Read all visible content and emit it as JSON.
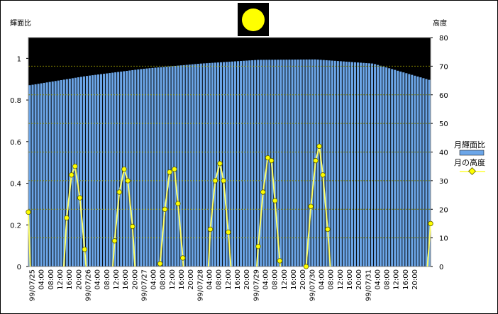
{
  "chart_data": {
    "type": "bar",
    "title": "",
    "left_axis": {
      "label": "輝面比",
      "range": [
        0,
        1.1
      ],
      "ticks": [
        "0",
        "0.2",
        "0.4",
        "0.6",
        "0.8",
        "1"
      ]
    },
    "right_axis": {
      "label": "高度",
      "range": [
        0,
        80
      ],
      "ticks": [
        "0",
        "10",
        "20",
        "30",
        "40",
        "50",
        "60",
        "70",
        "80"
      ]
    },
    "x_labels": [
      "99/07/25",
      "04:00",
      "08:00",
      "12:00",
      "16:00",
      "20:00",
      "99/07/26",
      "04:00",
      "08:00",
      "12:00",
      "16:00",
      "20:00",
      "99/07/27",
      "04:00",
      "08:00",
      "12:00",
      "16:00",
      "20:00",
      "99/07/28",
      "04:00",
      "08:00",
      "12:00",
      "16:00",
      "20:00",
      "99/07/29",
      "04:00",
      "08:00",
      "12:00",
      "16:00",
      "20:00",
      "99/07/30",
      "04:00",
      "08:00",
      "12:00",
      "16:00",
      "20:00",
      "99/07/31",
      "04:00",
      "08:00",
      "12:00",
      "16:00",
      "20:00"
    ],
    "x_range_hours": [
      0,
      168
    ],
    "legend": {
      "placement": "right",
      "series_bar": "月輝面比",
      "series_line": "月の高度"
    },
    "colors": {
      "bar": "#6CA6E8",
      "bar_background": "#000000",
      "line": "#FFFF66",
      "marker": "#FFFF00",
      "grid": "#808000",
      "moon": "#FFFF00"
    },
    "illumination": [
      [
        0,
        0.87
      ],
      [
        24,
        0.915
      ],
      [
        48,
        0.95
      ],
      [
        72,
        0.975
      ],
      [
        96,
        0.993
      ],
      [
        120,
        0.995
      ],
      [
        144,
        0.975
      ],
      [
        168,
        0.895
      ]
    ],
    "altitude_points": [
      [
        0,
        19
      ],
      [
        16,
        17
      ],
      [
        18,
        32
      ],
      [
        19.5,
        35
      ],
      [
        21.5,
        24
      ],
      [
        23.5,
        6
      ],
      [
        36,
        9
      ],
      [
        38,
        26
      ],
      [
        40,
        34
      ],
      [
        41.5,
        30
      ],
      [
        43.5,
        14
      ],
      [
        55,
        1
      ],
      [
        57,
        20
      ],
      [
        59,
        33
      ],
      [
        61,
        34
      ],
      [
        62.5,
        22
      ],
      [
        64.5,
        3
      ],
      [
        76,
        13
      ],
      [
        78,
        30
      ],
      [
        80,
        36
      ],
      [
        81.5,
        30
      ],
      [
        83.5,
        12
      ],
      [
        96,
        7
      ],
      [
        98,
        26
      ],
      [
        100,
        38
      ],
      [
        101.5,
        37
      ],
      [
        103,
        23
      ],
      [
        105,
        2
      ],
      [
        116,
        0
      ],
      [
        118,
        21
      ],
      [
        120,
        37
      ],
      [
        121.5,
        42
      ],
      [
        123,
        32
      ],
      [
        125,
        13
      ],
      [
        168,
        15
      ]
    ],
    "altitude_segments": [
      [
        [
          0,
          19
        ],
        [
          0.8,
          0
        ]
      ],
      [
        [
          14.8,
          0
        ],
        [
          16,
          17
        ],
        [
          18,
          32
        ],
        [
          19.5,
          35
        ],
        [
          21.5,
          24
        ],
        [
          23.5,
          6
        ],
        [
          24.1,
          0
        ]
      ],
      [
        [
          35.3,
          0
        ],
        [
          36,
          9
        ],
        [
          38,
          26
        ],
        [
          40,
          34
        ],
        [
          41.5,
          30
        ],
        [
          43.5,
          14
        ],
        [
          44.5,
          0
        ]
      ],
      [
        [
          54.9,
          0
        ],
        [
          55,
          1
        ],
        [
          57,
          20
        ],
        [
          59,
          33
        ],
        [
          61,
          34
        ],
        [
          62.5,
          22
        ],
        [
          64.5,
          3
        ],
        [
          64.7,
          0
        ]
      ],
      [
        [
          75.2,
          0
        ],
        [
          76,
          13
        ],
        [
          78,
          30
        ],
        [
          80,
          36
        ],
        [
          81.5,
          30
        ],
        [
          83.5,
          12
        ],
        [
          84.6,
          0
        ]
      ],
      [
        [
          95.4,
          0
        ],
        [
          96,
          7
        ],
        [
          98,
          26
        ],
        [
          100,
          38
        ],
        [
          101.5,
          37
        ],
        [
          103,
          23
        ],
        [
          105,
          2
        ],
        [
          105.2,
          0
        ]
      ],
      [
        [
          116,
          0
        ],
        [
          118,
          21
        ],
        [
          120,
          37
        ],
        [
          121.5,
          42
        ],
        [
          123,
          32
        ],
        [
          125,
          13
        ],
        [
          126.1,
          0
        ]
      ],
      [
        [
          166.7,
          0
        ],
        [
          168,
          15
        ]
      ]
    ],
    "bar_count": 141
  }
}
